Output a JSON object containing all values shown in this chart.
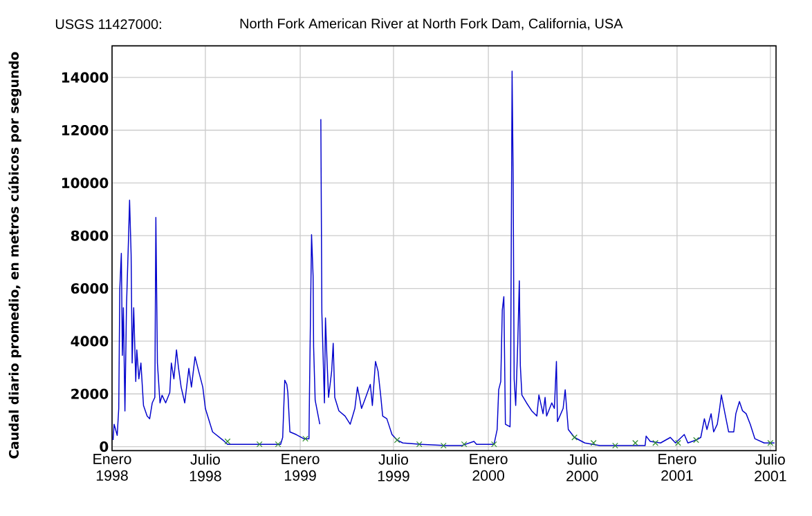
{
  "chart_data": {
    "type": "line",
    "title": "USGS 11427000:",
    "subtitle": "North Fork American River at North Fork Dam, California, USA",
    "ylabel": "Caudal diario promedio, en metros cúbicos por segundo",
    "xlim": [
      "1998-01-01",
      "2001-07-12"
    ],
    "ylim": [
      -150,
      15200
    ],
    "xticks": [
      {
        "value": "1998-01-01",
        "label": "Enero 1998"
      },
      {
        "value": "1998-07-01",
        "label": "Julio 1998"
      },
      {
        "value": "1999-01-01",
        "label": "Enero 1999"
      },
      {
        "value": "1999-07-01",
        "label": "Julio 1999"
      },
      {
        "value": "2000-01-01",
        "label": "Enero 2000"
      },
      {
        "value": "2000-07-01",
        "label": "Julio 2000"
      },
      {
        "value": "2001-01-01",
        "label": "Enero 2001"
      },
      {
        "value": "2001-07-01",
        "label": "Julio 2001"
      }
    ],
    "yticks": [
      0,
      2000,
      4000,
      6000,
      8000,
      10000,
      12000,
      14000
    ],
    "grid": true,
    "series": [
      {
        "color": "#0000cc",
        "line_style": "solid",
        "marker": "none",
        "x": [
          "1998-01-03",
          "1998-01-05",
          "1998-01-11",
          "1998-01-14",
          "1998-01-16",
          "1998-01-19",
          "1998-01-21",
          "1998-01-23",
          "1998-01-26",
          "1998-01-29",
          "1998-02-02",
          "1998-02-04",
          "1998-02-07",
          "1998-02-09",
          "1998-02-12",
          "1998-02-16",
          "1998-02-18",
          "1998-02-22",
          "1998-02-26",
          "1998-03-03",
          "1998-03-10",
          "1998-03-15",
          "1998-03-20",
          "1998-03-25",
          "1998-03-27",
          "1998-03-30",
          "1998-04-04",
          "1998-04-08",
          "1998-04-15",
          "1998-04-23",
          "1998-04-26",
          "1998-05-01",
          "1998-05-06",
          "1998-05-10",
          "1998-05-15",
          "1998-05-22",
          "1998-05-30",
          "1998-06-04",
          "1998-06-11",
          "1998-06-18",
          "1998-06-26",
          "1998-07-01",
          "1998-07-15",
          "1998-08-04",
          "1998-08-13",
          "1998-10-07",
          "1998-11-24",
          "1998-11-28",
          "1998-12-02",
          "1998-12-06",
          "1998-12-08",
          "1998-12-12",
          "1998-12-24",
          "1999-01-08",
          "1999-01-18",
          "1999-01-19",
          "1999-01-23",
          "1999-01-26",
          "1999-01-27",
          "1999-01-30",
          "1999-02-08",
          "1999-02-09",
          "1999-02-10",
          "1999-02-12",
          "1999-02-17",
          "1999-02-19",
          "1999-02-22",
          "1999-02-25",
          "1999-03-03",
          "1999-03-06",
          "1999-03-09",
          "1999-03-17",
          "1999-03-29",
          "1999-04-08",
          "1999-04-17",
          "1999-04-22",
          "1999-04-30",
          "1999-05-08",
          "1999-05-17",
          "1999-05-21",
          "1999-05-27",
          "1999-06-01",
          "1999-06-06",
          "1999-06-10",
          "1999-06-18",
          "1999-06-28",
          "1999-07-08",
          "1999-07-19",
          "1999-08-23",
          "1999-10-11",
          "1999-11-10",
          "1999-12-04",
          "1999-12-09",
          "2000-01-12",
          "2000-01-18",
          "2000-01-21",
          "2000-01-25",
          "2000-01-28",
          "2000-01-31",
          "2000-02-03",
          "2000-02-12",
          "2000-02-13",
          "2000-02-16",
          "2000-02-18",
          "2000-02-20",
          "2000-02-23",
          "2000-02-27",
          "2000-03-01",
          "2000-03-03",
          "2000-03-06",
          "2000-03-15",
          "2000-03-25",
          "2000-04-04",
          "2000-04-08",
          "2000-04-16",
          "2000-04-20",
          "2000-04-23",
          "2000-05-03",
          "2000-05-08",
          "2000-05-12",
          "2000-05-14",
          "2000-05-25",
          "2000-05-29",
          "2000-06-04",
          "2000-06-16",
          "2000-07-06",
          "2000-08-04",
          "2000-10-02",
          "2000-10-31",
          "2000-11-02",
          "2000-11-10",
          "2000-11-30",
          "2000-12-19",
          "2000-12-29",
          "2001-01-15",
          "2001-01-22",
          "2001-02-07",
          "2001-02-16",
          "2001-02-23",
          "2001-02-28",
          "2001-03-08",
          "2001-03-13",
          "2001-03-20",
          "2001-03-24",
          "2001-03-28",
          "2001-04-04",
          "2001-04-11",
          "2001-04-21",
          "2001-04-25",
          "2001-05-02",
          "2001-05-08",
          "2001-05-15",
          "2001-05-23",
          "2001-06-01",
          "2001-06-19",
          "2001-07-09"
        ],
        "values": [
          250,
          850,
          430,
          1450,
          5970,
          7330,
          3460,
          5270,
          1350,
          5320,
          7930,
          9350,
          7280,
          3170,
          5270,
          2470,
          3670,
          2570,
          3170,
          1560,
          1160,
          1060,
          1660,
          1870,
          8690,
          3170,
          1660,
          1950,
          1660,
          2050,
          3170,
          2570,
          3670,
          2970,
          2260,
          1660,
          2970,
          2260,
          3410,
          2860,
          2260,
          1450,
          560,
          250,
          90,
          90,
          90,
          350,
          2520,
          2360,
          2050,
          560,
          460,
          300,
          300,
          2050,
          8040,
          6470,
          3780,
          1760,
          850,
          null,
          12420,
          5080,
          1660,
          4880,
          3270,
          1870,
          2860,
          3920,
          1870,
          1360,
          1160,
          850,
          1450,
          2260,
          1450,
          1870,
          2360,
          1560,
          3230,
          2860,
          1960,
          1160,
          1060,
          460,
          250,
          140,
          90,
          40,
          40,
          200,
          90,
          90,
          650,
          2160,
          2470,
          5180,
          5690,
          850,
          750,
          1960,
          14240,
          10370,
          2570,
          1560,
          3920,
          6290,
          3070,
          1960,
          1660,
          1360,
          1160,
          1960,
          1250,
          1870,
          1160,
          1660,
          1450,
          3230,
          950,
          1450,
          2160,
          650,
          350,
          140,
          40,
          40,
          40,
          400,
          200,
          140,
          350,
          140,
          460,
          140,
          250,
          350,
          1060,
          650,
          1250,
          560,
          850,
          1360,
          1960,
          1250,
          560,
          560,
          1250,
          1710,
          1360,
          1250,
          850,
          300,
          140,
          140
        ]
      },
      {
        "type": "scatter",
        "color": "#2e8b2e",
        "marker": "cross",
        "x": [
          "1998-08-13",
          "1998-10-14",
          "1998-11-19",
          "1999-01-11",
          "1999-07-08",
          "1999-08-20",
          "1999-10-06",
          "1999-11-15",
          "2000-01-12",
          "2000-06-16",
          "2000-07-23",
          "2000-09-03",
          "2000-10-12",
          "2000-11-20",
          "2001-01-03",
          "2001-02-07",
          "2001-07-01"
        ],
        "values": [
          200,
          90,
          90,
          300,
          250,
          90,
          40,
          90,
          90,
          350,
          140,
          40,
          140,
          140,
          140,
          250,
          140
        ]
      }
    ]
  }
}
